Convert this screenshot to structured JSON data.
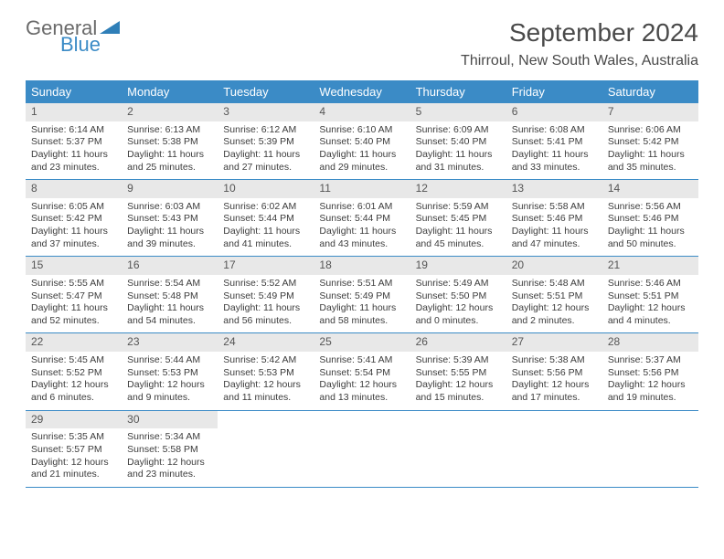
{
  "brand": {
    "general": "General",
    "blue": "Blue"
  },
  "title": "September 2024",
  "location": "Thirroul, New South Wales, Australia",
  "colors": {
    "header_bg": "#3b8bc6",
    "daynum_bg": "#e8e8e8",
    "text": "#3c3c3c",
    "border": "#3b8bc6"
  },
  "weekdays": [
    "Sunday",
    "Monday",
    "Tuesday",
    "Wednesday",
    "Thursday",
    "Friday",
    "Saturday"
  ],
  "weeks": [
    [
      {
        "n": "1",
        "sr": "Sunrise: 6:14 AM",
        "ss": "Sunset: 5:37 PM",
        "dl": "Daylight: 11 hours and 23 minutes."
      },
      {
        "n": "2",
        "sr": "Sunrise: 6:13 AM",
        "ss": "Sunset: 5:38 PM",
        "dl": "Daylight: 11 hours and 25 minutes."
      },
      {
        "n": "3",
        "sr": "Sunrise: 6:12 AM",
        "ss": "Sunset: 5:39 PM",
        "dl": "Daylight: 11 hours and 27 minutes."
      },
      {
        "n": "4",
        "sr": "Sunrise: 6:10 AM",
        "ss": "Sunset: 5:40 PM",
        "dl": "Daylight: 11 hours and 29 minutes."
      },
      {
        "n": "5",
        "sr": "Sunrise: 6:09 AM",
        "ss": "Sunset: 5:40 PM",
        "dl": "Daylight: 11 hours and 31 minutes."
      },
      {
        "n": "6",
        "sr": "Sunrise: 6:08 AM",
        "ss": "Sunset: 5:41 PM",
        "dl": "Daylight: 11 hours and 33 minutes."
      },
      {
        "n": "7",
        "sr": "Sunrise: 6:06 AM",
        "ss": "Sunset: 5:42 PM",
        "dl": "Daylight: 11 hours and 35 minutes."
      }
    ],
    [
      {
        "n": "8",
        "sr": "Sunrise: 6:05 AM",
        "ss": "Sunset: 5:42 PM",
        "dl": "Daylight: 11 hours and 37 minutes."
      },
      {
        "n": "9",
        "sr": "Sunrise: 6:03 AM",
        "ss": "Sunset: 5:43 PM",
        "dl": "Daylight: 11 hours and 39 minutes."
      },
      {
        "n": "10",
        "sr": "Sunrise: 6:02 AM",
        "ss": "Sunset: 5:44 PM",
        "dl": "Daylight: 11 hours and 41 minutes."
      },
      {
        "n": "11",
        "sr": "Sunrise: 6:01 AM",
        "ss": "Sunset: 5:44 PM",
        "dl": "Daylight: 11 hours and 43 minutes."
      },
      {
        "n": "12",
        "sr": "Sunrise: 5:59 AM",
        "ss": "Sunset: 5:45 PM",
        "dl": "Daylight: 11 hours and 45 minutes."
      },
      {
        "n": "13",
        "sr": "Sunrise: 5:58 AM",
        "ss": "Sunset: 5:46 PM",
        "dl": "Daylight: 11 hours and 47 minutes."
      },
      {
        "n": "14",
        "sr": "Sunrise: 5:56 AM",
        "ss": "Sunset: 5:46 PM",
        "dl": "Daylight: 11 hours and 50 minutes."
      }
    ],
    [
      {
        "n": "15",
        "sr": "Sunrise: 5:55 AM",
        "ss": "Sunset: 5:47 PM",
        "dl": "Daylight: 11 hours and 52 minutes."
      },
      {
        "n": "16",
        "sr": "Sunrise: 5:54 AM",
        "ss": "Sunset: 5:48 PM",
        "dl": "Daylight: 11 hours and 54 minutes."
      },
      {
        "n": "17",
        "sr": "Sunrise: 5:52 AM",
        "ss": "Sunset: 5:49 PM",
        "dl": "Daylight: 11 hours and 56 minutes."
      },
      {
        "n": "18",
        "sr": "Sunrise: 5:51 AM",
        "ss": "Sunset: 5:49 PM",
        "dl": "Daylight: 11 hours and 58 minutes."
      },
      {
        "n": "19",
        "sr": "Sunrise: 5:49 AM",
        "ss": "Sunset: 5:50 PM",
        "dl": "Daylight: 12 hours and 0 minutes."
      },
      {
        "n": "20",
        "sr": "Sunrise: 5:48 AM",
        "ss": "Sunset: 5:51 PM",
        "dl": "Daylight: 12 hours and 2 minutes."
      },
      {
        "n": "21",
        "sr": "Sunrise: 5:46 AM",
        "ss": "Sunset: 5:51 PM",
        "dl": "Daylight: 12 hours and 4 minutes."
      }
    ],
    [
      {
        "n": "22",
        "sr": "Sunrise: 5:45 AM",
        "ss": "Sunset: 5:52 PM",
        "dl": "Daylight: 12 hours and 6 minutes."
      },
      {
        "n": "23",
        "sr": "Sunrise: 5:44 AM",
        "ss": "Sunset: 5:53 PM",
        "dl": "Daylight: 12 hours and 9 minutes."
      },
      {
        "n": "24",
        "sr": "Sunrise: 5:42 AM",
        "ss": "Sunset: 5:53 PM",
        "dl": "Daylight: 12 hours and 11 minutes."
      },
      {
        "n": "25",
        "sr": "Sunrise: 5:41 AM",
        "ss": "Sunset: 5:54 PM",
        "dl": "Daylight: 12 hours and 13 minutes."
      },
      {
        "n": "26",
        "sr": "Sunrise: 5:39 AM",
        "ss": "Sunset: 5:55 PM",
        "dl": "Daylight: 12 hours and 15 minutes."
      },
      {
        "n": "27",
        "sr": "Sunrise: 5:38 AM",
        "ss": "Sunset: 5:56 PM",
        "dl": "Daylight: 12 hours and 17 minutes."
      },
      {
        "n": "28",
        "sr": "Sunrise: 5:37 AM",
        "ss": "Sunset: 5:56 PM",
        "dl": "Daylight: 12 hours and 19 minutes."
      }
    ],
    [
      {
        "n": "29",
        "sr": "Sunrise: 5:35 AM",
        "ss": "Sunset: 5:57 PM",
        "dl": "Daylight: 12 hours and 21 minutes."
      },
      {
        "n": "30",
        "sr": "Sunrise: 5:34 AM",
        "ss": "Sunset: 5:58 PM",
        "dl": "Daylight: 12 hours and 23 minutes."
      },
      {
        "empty": true
      },
      {
        "empty": true
      },
      {
        "empty": true
      },
      {
        "empty": true
      },
      {
        "empty": true
      }
    ]
  ]
}
